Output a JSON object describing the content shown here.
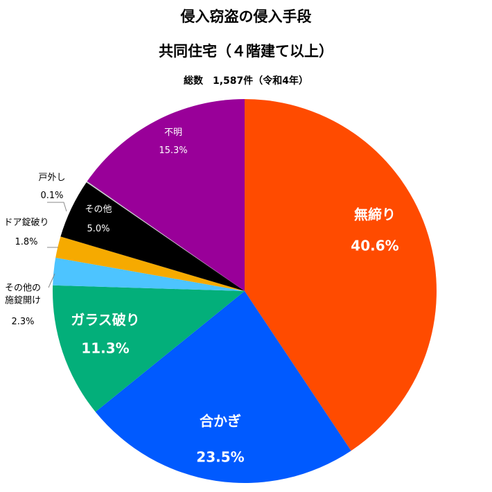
{
  "chart_data": {
    "type": "pie",
    "title": [
      "侵入窃盗の侵入手段",
      "共同住宅（４階建て以上）"
    ],
    "subtitle": "総数　1,587件（令和4年）",
    "categories": [
      "無締り",
      "合かぎ",
      "ガラス破り",
      "その他の\n施錠開け",
      "ドア錠破り",
      "その他",
      "戸外し",
      "不明"
    ],
    "values": [
      40.6,
      23.5,
      11.3,
      2.3,
      1.8,
      5.0,
      0.1,
      15.3
    ],
    "value_labels": [
      "40.6%",
      "23.5%",
      "11.3%",
      "2.3%",
      "1.8%",
      "5.0%",
      "0.1%",
      "15.3%"
    ],
    "colors": [
      "#ff4b00",
      "#005aff",
      "#03af7a",
      "#4dc4ff",
      "#f6aa00",
      "#000000",
      "#c8c8cb",
      "#990099"
    ]
  }
}
